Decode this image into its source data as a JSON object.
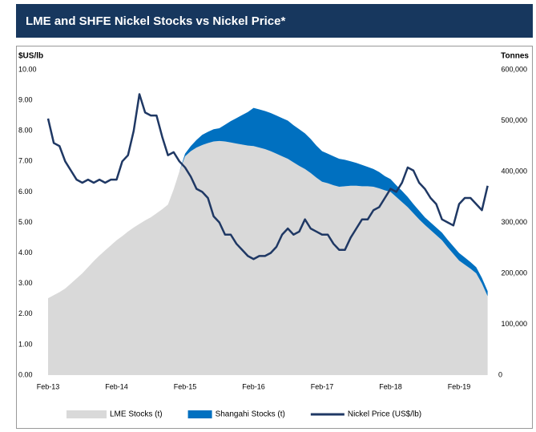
{
  "chart_data": {
    "type": "area",
    "title": "LME and SHFE Nickel Stocks vs Nickel Price*",
    "ylabel": "$US/lb",
    "y2label": "Tonnes",
    "categories": [
      "Feb-13",
      null,
      null,
      null,
      null,
      null,
      null,
      null,
      null,
      null,
      null,
      null,
      "Feb-14",
      null,
      null,
      null,
      null,
      null,
      null,
      null,
      null,
      null,
      null,
      null,
      "Feb-15",
      null,
      null,
      null,
      null,
      null,
      null,
      null,
      null,
      null,
      null,
      null,
      "Feb-16",
      null,
      null,
      null,
      null,
      null,
      null,
      null,
      null,
      null,
      null,
      null,
      "Feb-17",
      null,
      null,
      null,
      null,
      null,
      null,
      null,
      null,
      null,
      null,
      null,
      "Feb-18",
      null,
      null,
      null,
      null,
      null,
      null,
      null,
      null,
      null,
      null,
      null,
      "Feb-19",
      null,
      null,
      null,
      null,
      null
    ],
    "ylim": [
      0,
      10
    ],
    "yticks": [
      {
        "value": 0,
        "label": "0.00"
      },
      {
        "value": 1,
        "label": "1.00"
      },
      {
        "value": 2,
        "label": "2.00"
      },
      {
        "value": 3,
        "label": "3.00"
      },
      {
        "value": 4,
        "label": "4.00"
      },
      {
        "value": 5,
        "label": "5.00"
      },
      {
        "value": 6,
        "label": "6.00"
      },
      {
        "value": 7,
        "label": "7.00"
      },
      {
        "value": 8,
        "label": "8.00"
      },
      {
        "value": 9,
        "label": "9.00"
      },
      {
        "value": 10,
        "label": "10.00"
      }
    ],
    "y2lim": [
      0,
      600000
    ],
    "y2ticks": [
      0,
      {
        "value": 100000,
        "label": "100,000"
      },
      {
        "value": 200000,
        "label": "200,000"
      },
      {
        "value": 300000,
        "label": "300,000"
      },
      {
        "value": 400000,
        "label": "400,000"
      },
      {
        "value": 500000,
        "label": "500,000"
      },
      {
        "value": 600000,
        "label": "600,000"
      }
    ],
    "stacked": true,
    "series": [
      {
        "name": "LME Stocks (t)",
        "type": "area",
        "axis": "y2",
        "color": "#d9d9d9",
        "values": [
          151000,
          157000,
          163000,
          170000,
          180000,
          190000,
          200000,
          212000,
          224000,
          235000,
          245000,
          255000,
          265000,
          273000,
          282000,
          290000,
          297000,
          304000,
          310000,
          318000,
          326000,
          335000,
          365000,
          400000,
          430000,
          440000,
          447000,
          452000,
          456000,
          459000,
          460000,
          459000,
          457000,
          455000,
          453000,
          451000,
          450000,
          447000,
          444000,
          440000,
          435000,
          430000,
          425000,
          418000,
          411000,
          405000,
          397000,
          388000,
          380000,
          377000,
          373000,
          370000,
          371000,
          372000,
          372000,
          371000,
          371000,
          370000,
          367000,
          363000,
          360000,
          350000,
          340000,
          330000,
          318000,
          306000,
          295000,
          285000,
          275000,
          265000,
          251000,
          238000,
          225000,
          217000,
          209000,
          200000,
          180000,
          155000
        ]
      },
      {
        "name": "Shangahi Stocks (t)",
        "type": "area",
        "axis": "y2",
        "color": "#0070c0",
        "values": [
          0,
          0,
          0,
          0,
          0,
          0,
          0,
          0,
          0,
          0,
          0,
          0,
          0,
          0,
          0,
          0,
          0,
          0,
          0,
          0,
          0,
          0,
          0,
          0,
          5000,
          10000,
          15000,
          20000,
          22000,
          24000,
          25000,
          33000,
          42000,
          50000,
          58000,
          66000,
          75000,
          75000,
          75000,
          75000,
          75000,
          75000,
          75000,
          73000,
          72000,
          70000,
          67000,
          63000,
          60000,
          58000,
          57000,
          55000,
          52000,
          48000,
          45000,
          42000,
          38000,
          35000,
          32000,
          28000,
          25000,
          23000,
          22000,
          20000,
          18000,
          17000,
          15000,
          15000,
          15000,
          15000,
          15000,
          15000,
          15000,
          14000,
          13000,
          12000,
          11000,
          10000
        ]
      },
      {
        "name": "Nickel Price (US$/lb)",
        "type": "line",
        "axis": "y",
        "color": "#1f3864",
        "values": [
          8.4,
          7.6,
          7.5,
          7.0,
          6.7,
          6.4,
          6.3,
          6.4,
          6.3,
          6.4,
          6.3,
          6.4,
          6.4,
          7.0,
          7.2,
          8.0,
          9.2,
          8.6,
          8.5,
          8.5,
          7.8,
          7.2,
          7.3,
          7.0,
          6.8,
          6.5,
          6.1,
          6.0,
          5.8,
          5.2,
          5.0,
          4.6,
          4.6,
          4.3,
          4.1,
          3.9,
          3.8,
          3.9,
          3.9,
          4.0,
          4.2,
          4.6,
          4.8,
          4.6,
          4.7,
          5.1,
          4.8,
          4.7,
          4.6,
          4.6,
          4.3,
          4.1,
          4.1,
          4.5,
          4.8,
          5.1,
          5.1,
          5.4,
          5.5,
          5.8,
          6.1,
          6.0,
          6.3,
          6.8,
          6.7,
          6.3,
          6.1,
          5.8,
          5.6,
          5.1,
          5.0,
          4.9,
          5.6,
          5.8,
          5.8,
          5.6,
          5.4,
          6.2
        ]
      }
    ]
  }
}
